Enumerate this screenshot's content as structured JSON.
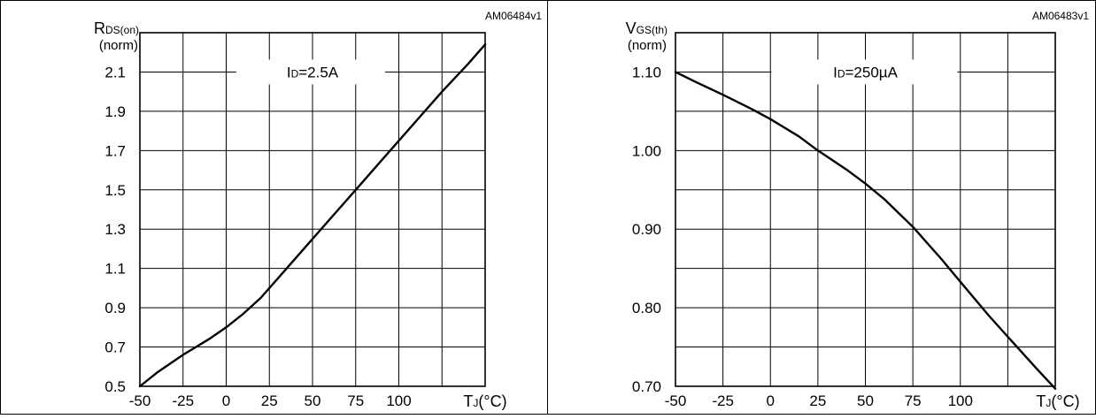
{
  "chart_data": [
    {
      "type": "line",
      "figure_code": "AM06484v1",
      "ylabel": {
        "symbol": "R",
        "subscript": "DS(on)",
        "unit": "(norm)"
      },
      "xlabel": {
        "symbol": "T",
        "subscript": "J",
        "unit": "(°C)"
      },
      "annotation": {
        "symbol": "I",
        "subscript": "D",
        "text": "=2.5A",
        "x": 50,
        "y": 2.1
      },
      "xlim": [
        -50,
        150
      ],
      "ylim": [
        0.5,
        2.3
      ],
      "xticks": [
        -50,
        -25,
        0,
        25,
        50,
        75,
        100
      ],
      "xtick_labels": [
        "-50",
        "-25",
        "0",
        "25",
        "50",
        "75",
        "100"
      ],
      "yticks": [
        0.5,
        0.7,
        0.9,
        1.1,
        1.3,
        1.5,
        1.7,
        1.9,
        2.1
      ],
      "ytick_labels": [
        "0.5",
        "0.7",
        "0.9",
        "1.1",
        "1.3",
        "1.5",
        "1.7",
        "1.9",
        "2.1"
      ],
      "x_grid": [
        -50,
        -25,
        0,
        25,
        50,
        75,
        100,
        125,
        150
      ],
      "y_grid": [
        0.5,
        0.7,
        0.9,
        1.1,
        1.3,
        1.5,
        1.7,
        1.9,
        2.1,
        2.3
      ],
      "grid": true,
      "series": [
        {
          "x": [
            -50,
            -40,
            -25,
            -10,
            0,
            10,
            20,
            30,
            40,
            50,
            60,
            75,
            90,
            100,
            110,
            125,
            140,
            150
          ],
          "y": [
            0.5,
            0.57,
            0.66,
            0.74,
            0.8,
            0.87,
            0.95,
            1.05,
            1.15,
            1.25,
            1.35,
            1.5,
            1.65,
            1.75,
            1.85,
            2.0,
            2.14,
            2.24
          ]
        }
      ]
    },
    {
      "type": "line",
      "figure_code": "AM06483v1",
      "ylabel": {
        "symbol": "V",
        "subscript": "GS(th)",
        "unit": "(norm)"
      },
      "xlabel": {
        "symbol": "T",
        "subscript": "J",
        "unit": "(°C)"
      },
      "annotation": {
        "symbol": "I",
        "subscript": "D",
        "text": "=250µA",
        "x": 50,
        "y": 1.1
      },
      "xlim": [
        -50,
        150
      ],
      "ylim": [
        0.7,
        1.15
      ],
      "xticks": [
        -50,
        -25,
        0,
        25,
        50,
        75,
        100
      ],
      "xtick_labels": [
        "-50",
        "-25",
        "0",
        "25",
        "50",
        "75",
        "100"
      ],
      "yticks": [
        0.7,
        0.8,
        0.9,
        1.0,
        1.1
      ],
      "ytick_labels": [
        "0.70",
        "0.80",
        "0.90",
        "1.00",
        "1.10"
      ],
      "x_grid": [
        -50,
        -25,
        0,
        25,
        50,
        75,
        100,
        125,
        150
      ],
      "y_grid": [
        0.7,
        0.75,
        0.8,
        0.85,
        0.9,
        0.95,
        1.0,
        1.05,
        1.1,
        1.15
      ],
      "grid": true,
      "series": [
        {
          "x": [
            -50,
            -40,
            -25,
            -10,
            0,
            15,
            25,
            40,
            50,
            60,
            75,
            90,
            100,
            115,
            125,
            140,
            150
          ],
          "y": [
            1.1,
            1.088,
            1.071,
            1.053,
            1.04,
            1.018,
            1.0,
            0.976,
            0.958,
            0.938,
            0.903,
            0.862,
            0.833,
            0.79,
            0.763,
            0.723,
            0.697
          ]
        }
      ]
    }
  ]
}
